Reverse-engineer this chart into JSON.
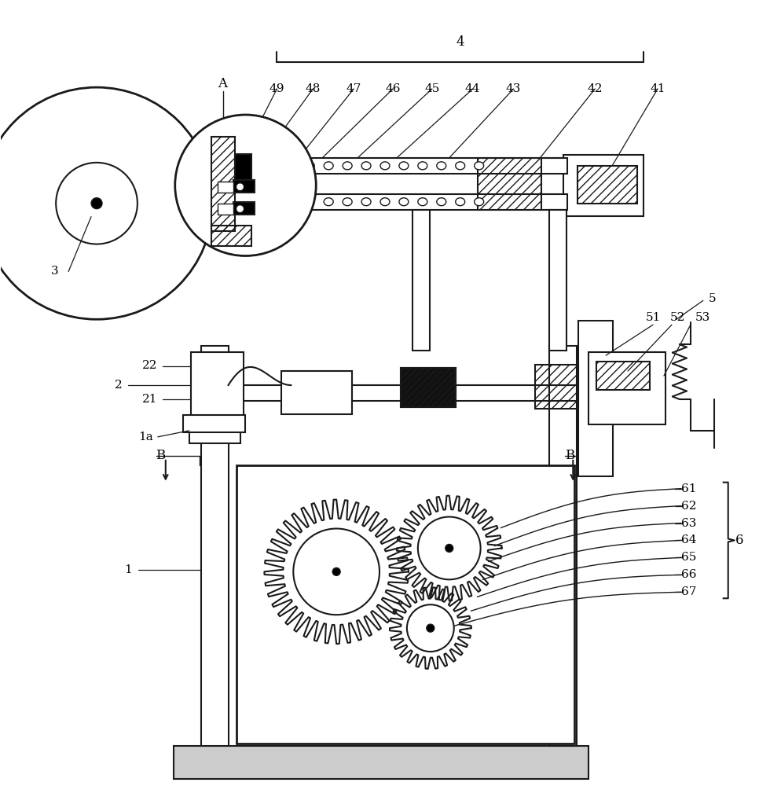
{
  "bg": "#ffffff",
  "lc": "#1a1a1a",
  "lw": 1.5,
  "fig_w": 9.66,
  "fig_h": 10.0,
  "dpi": 100,
  "top_labels": [
    [
      "49",
      352,
      112,
      315,
      185
    ],
    [
      "48",
      398,
      112,
      345,
      185
    ],
    [
      "47",
      450,
      112,
      380,
      200
    ],
    [
      "46",
      500,
      112,
      410,
      200
    ],
    [
      "45",
      550,
      112,
      455,
      200
    ],
    [
      "44",
      602,
      112,
      505,
      200
    ],
    [
      "43",
      654,
      112,
      572,
      200
    ],
    [
      "42",
      758,
      112,
      688,
      200
    ],
    [
      "41",
      838,
      112,
      780,
      210
    ]
  ],
  "gear_labels": [
    [
      "61",
      878,
      622,
      638,
      672
    ],
    [
      "62",
      878,
      644,
      630,
      695
    ],
    [
      "63",
      878,
      666,
      622,
      715
    ],
    [
      "64",
      878,
      688,
      615,
      738
    ],
    [
      "65",
      878,
      710,
      608,
      760
    ],
    [
      "66",
      878,
      732,
      600,
      778
    ],
    [
      "67",
      878,
      754,
      568,
      800
    ]
  ]
}
